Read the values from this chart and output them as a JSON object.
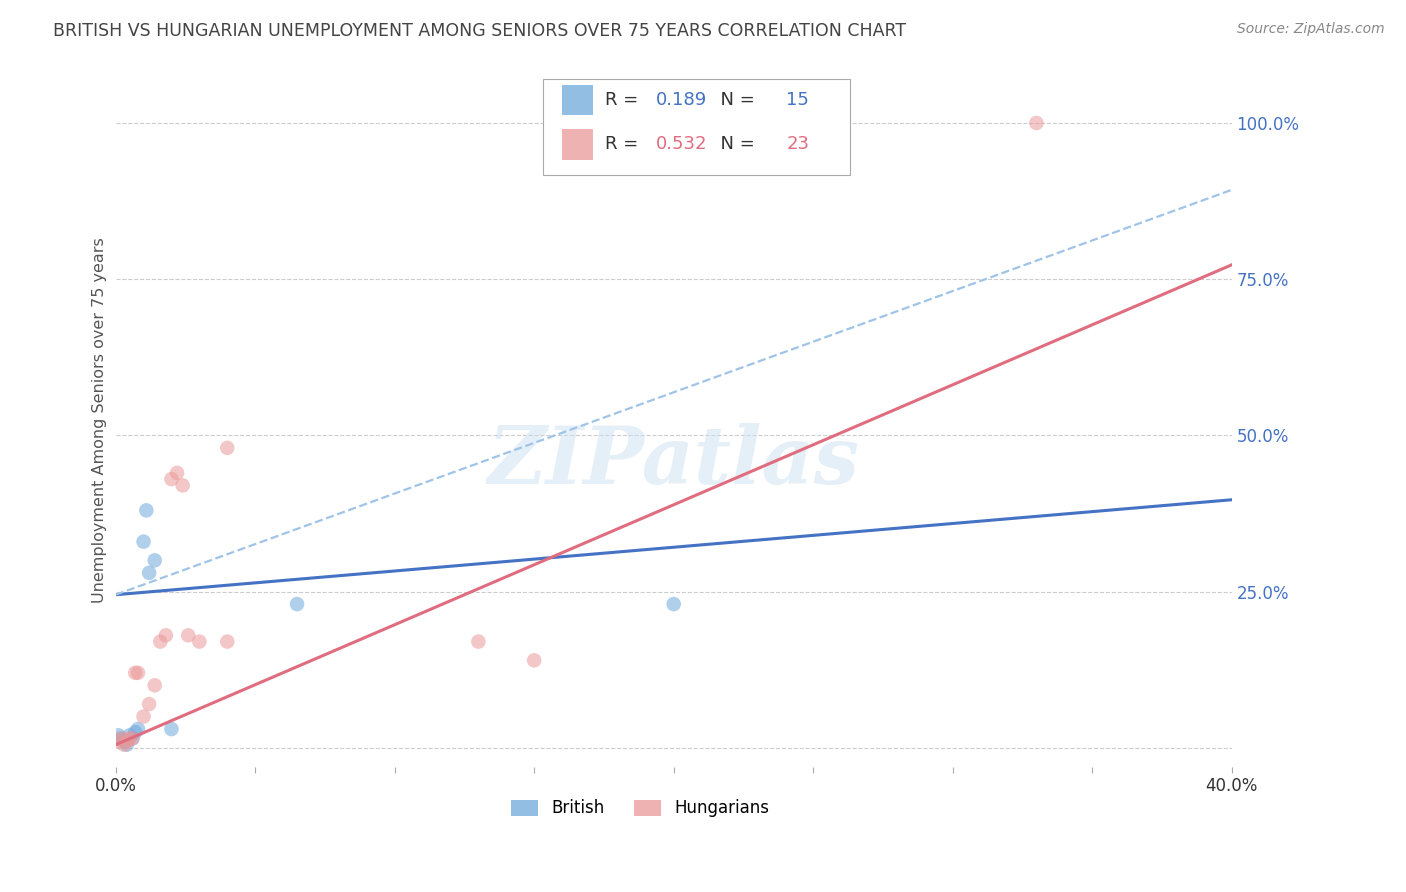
{
  "title": "BRITISH VS HUNGARIAN UNEMPLOYMENT AMONG SENIORS OVER 75 YEARS CORRELATION CHART",
  "source": "Source: ZipAtlas.com",
  "ylabel": "Unemployment Among Seniors over 75 years",
  "watermark": "ZIPatlas",
  "xlim": [
    0.0,
    0.4
  ],
  "ylim": [
    -0.03,
    1.08
  ],
  "xticks": [
    0.0,
    0.05,
    0.1,
    0.15,
    0.2,
    0.25,
    0.3,
    0.35,
    0.4
  ],
  "xticklabels": [
    "0.0%",
    "",
    "",
    "",
    "",
    "",
    "",
    "",
    "40.0%"
  ],
  "yticks_right": [
    0.25,
    0.5,
    0.75,
    1.0
  ],
  "yticklabels_right": [
    "25.0%",
    "50.0%",
    "75.0%",
    "100.0%"
  ],
  "legend_british_R": "0.189",
  "legend_british_N": "15",
  "legend_hungarian_R": "0.532",
  "legend_hungarian_N": "23",
  "british_color": "#6fa8dc",
  "hungarian_color": "#ea9999",
  "british_line_color": "#4472c4",
  "hungarian_line_color": "#e06c7f",
  "dashed_line_color": "#a0c4e8",
  "grid_color": "#cccccc",
  "title_color": "#444444",
  "right_axis_color": "#4472c4",
  "scatter_alpha": 0.55,
  "scatter_size": 110,
  "british_x": [
    0.001,
    0.002,
    0.003,
    0.004,
    0.005,
    0.006,
    0.007,
    0.008,
    0.01,
    0.011,
    0.012,
    0.014,
    0.02,
    0.065,
    0.2
  ],
  "british_y": [
    0.02,
    0.015,
    0.01,
    0.005,
    0.02,
    0.015,
    0.025,
    0.03,
    0.33,
    0.38,
    0.28,
    0.3,
    0.03,
    0.23,
    0.23
  ],
  "hungarian_x": [
    0.001,
    0.002,
    0.003,
    0.004,
    0.005,
    0.006,
    0.007,
    0.008,
    0.01,
    0.012,
    0.014,
    0.016,
    0.018,
    0.02,
    0.022,
    0.024,
    0.026,
    0.03,
    0.04,
    0.04,
    0.13,
    0.15,
    0.33
  ],
  "hungarian_y": [
    0.01,
    0.015,
    0.005,
    0.01,
    0.015,
    0.015,
    0.12,
    0.12,
    0.05,
    0.07,
    0.1,
    0.17,
    0.18,
    0.43,
    0.44,
    0.42,
    0.18,
    0.17,
    0.17,
    0.48,
    0.17,
    0.14,
    1.0
  ],
  "british_regression": {
    "intercept": 0.245,
    "slope": 0.38
  },
  "hungarian_regression": {
    "intercept": 0.005,
    "slope": 1.92
  },
  "dashed_regression": {
    "intercept": 0.245,
    "slope": 1.62
  }
}
